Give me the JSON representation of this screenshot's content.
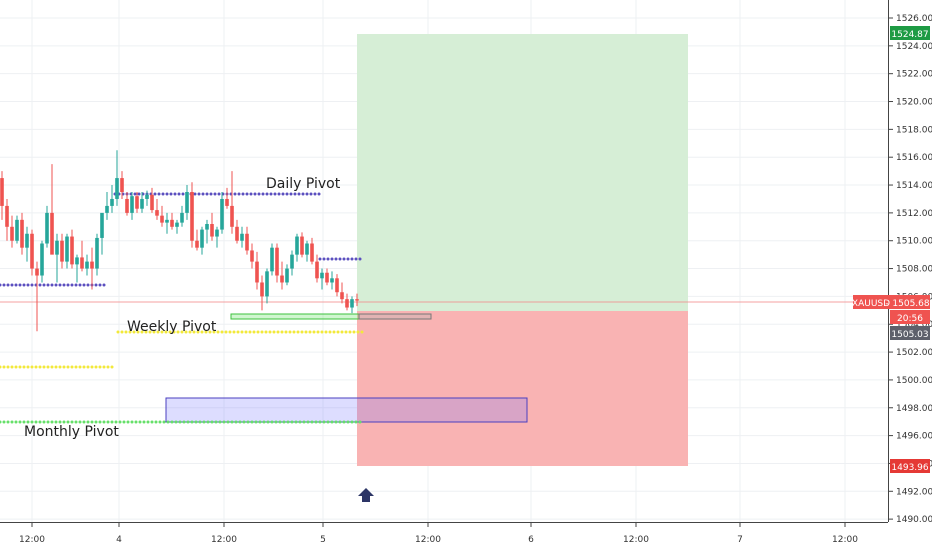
{
  "chart_data": {
    "type": "candlestick",
    "symbol": "XAUUSD",
    "y_axis": {
      "min": 1490,
      "max": 1526,
      "ticks": [
        "1526.00",
        "1524.00",
        "1522.00",
        "1520.00",
        "1518.00",
        "1516.00",
        "1514.00",
        "1512.00",
        "1510.00",
        "1508.00",
        "1506.00",
        "1504.00",
        "1502.00",
        "1500.00",
        "1498.00",
        "1496.00",
        "1494.00",
        "1492.00",
        "1490.00"
      ]
    },
    "x_axis": {
      "ticks": [
        "12:00",
        "4",
        "12:00",
        "5",
        "12:00",
        "6",
        "12:00",
        "7",
        "12:00"
      ]
    },
    "price_labels": {
      "target": "1524.87",
      "current_symbol": "XAUUSD",
      "current_price": "1505.68",
      "countdown": "20:56",
      "entry": "1505.03",
      "stop": "1493.96"
    },
    "price_levels": {
      "target": 1524.87,
      "current": 1505.68,
      "entry": 1505.03,
      "stop": 1493.96
    },
    "annotations": {
      "daily_pivot": "Daily Pivot",
      "weekly_pivot": "Weekly Pivot",
      "monthly_pivot": "Monthly Pivot"
    },
    "colors": {
      "up": "#26a69a",
      "down": "#ef5350",
      "profit_zone": "#d6eed6",
      "loss_zone": "#f9b3b3",
      "daily_pivot": "#5b4fbf",
      "weekly_pivot": "#f2e93a",
      "monthly_pivot": "#66e06a",
      "target_label": "#1e9b44",
      "stop_label": "#e53935",
      "current_label": "#ef5350",
      "entry_label": "#5d606b"
    }
  }
}
